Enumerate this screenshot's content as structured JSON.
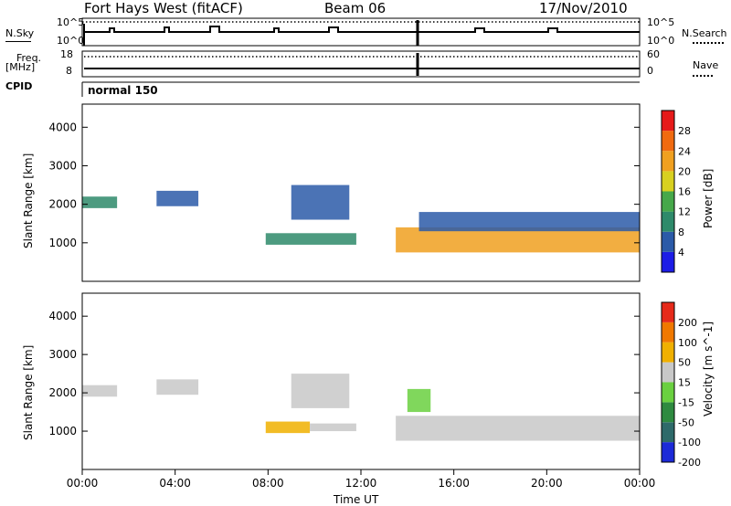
{
  "header": {
    "station": "Fort Hays West (fitACF)",
    "beam": "Beam 06",
    "date": "17/Nov/2010"
  },
  "top_panels": {
    "nsky_label": "N.Sky",
    "nsearch_label": "N.Search",
    "freq_label": "Freq.",
    "mhz_label": "[MHz]",
    "nave_label": "Nave",
    "cpid_label": "CPID",
    "noise_max": "10^5",
    "noise_min": "10^0",
    "freq_max": "18",
    "freq_min": "8",
    "nave_max": "60",
    "nave_min": "0",
    "cpid_value": "normal 150"
  },
  "x_axis": {
    "title": "Time UT",
    "ticks": [
      "00:00",
      "04:00",
      "08:00",
      "12:00",
      "16:00",
      "20:00",
      "00:00"
    ]
  },
  "chart_data": [
    {
      "type": "heatmap",
      "title": "",
      "xlabel": "Time UT",
      "ylabel": "Slant Range [km]",
      "xlim": [
        0,
        24
      ],
      "ylim": [
        0,
        4600
      ],
      "yticks": [
        "1000",
        "2000",
        "3000",
        "4000"
      ],
      "colorbar": {
        "label": "Power [dB]",
        "ticks": [
          "4",
          "8",
          "12",
          "16",
          "20",
          "24",
          "28"
        ],
        "colors": [
          "#1c1ce6",
          "#2b5aa8",
          "#2e8a6a",
          "#46a84a",
          "#d8d020",
          "#f0a020",
          "#f06a10",
          "#e61a1a"
        ]
      },
      "regions": [
        {
          "t0": 0.0,
          "t1": 1.5,
          "r0": 1900,
          "r1": 2200,
          "level": 2
        },
        {
          "t0": 3.2,
          "t1": 5.0,
          "r0": 1950,
          "r1": 2350,
          "level": 1
        },
        {
          "t0": 7.9,
          "t1": 11.8,
          "r0": 950,
          "r1": 1250,
          "level": 2
        },
        {
          "t0": 9.0,
          "t1": 11.5,
          "r0": 1600,
          "r1": 2500,
          "level": 1
        },
        {
          "t0": 13.5,
          "t1": 24.0,
          "r0": 750,
          "r1": 1400,
          "level": 5
        },
        {
          "t0": 14.5,
          "t1": 24.0,
          "r0": 1300,
          "r1": 1800,
          "level": 1
        }
      ]
    },
    {
      "type": "heatmap",
      "title": "",
      "xlabel": "Time UT",
      "ylabel": "Slant Range [km]",
      "xlim": [
        0,
        24
      ],
      "ylim": [
        0,
        4600
      ],
      "yticks": [
        "1000",
        "2000",
        "3000",
        "4000"
      ],
      "colorbar": {
        "label": "Velocity [m s^-1]",
        "ticks": [
          "200",
          "100",
          "50",
          "15",
          "-15",
          "-50",
          "-100",
          "-200"
        ],
        "colors": [
          "#1c2ad8",
          "#2e6a6a",
          "#2e8a40",
          "#6ad040",
          "#c8c8c8",
          "#f0b000",
          "#f07800",
          "#e62a1a"
        ]
      },
      "regions": [
        {
          "t0": 0.0,
          "t1": 1.5,
          "r0": 1900,
          "r1": 2200,
          "level": 4
        },
        {
          "t0": 3.2,
          "t1": 5.0,
          "r0": 1950,
          "r1": 2350,
          "level": 4
        },
        {
          "t0": 7.9,
          "t1": 9.8,
          "r0": 950,
          "r1": 1250,
          "level": 5
        },
        {
          "t0": 9.8,
          "t1": 11.8,
          "r0": 1000,
          "r1": 1200,
          "level": 4
        },
        {
          "t0": 9.0,
          "t1": 11.5,
          "r0": 1600,
          "r1": 2500,
          "level": 4
        },
        {
          "t0": 13.5,
          "t1": 24.0,
          "r0": 750,
          "r1": 1400,
          "level": 4
        },
        {
          "t0": 14.0,
          "t1": 15.0,
          "r0": 1500,
          "r1": 2100,
          "level": 3
        }
      ]
    }
  ]
}
